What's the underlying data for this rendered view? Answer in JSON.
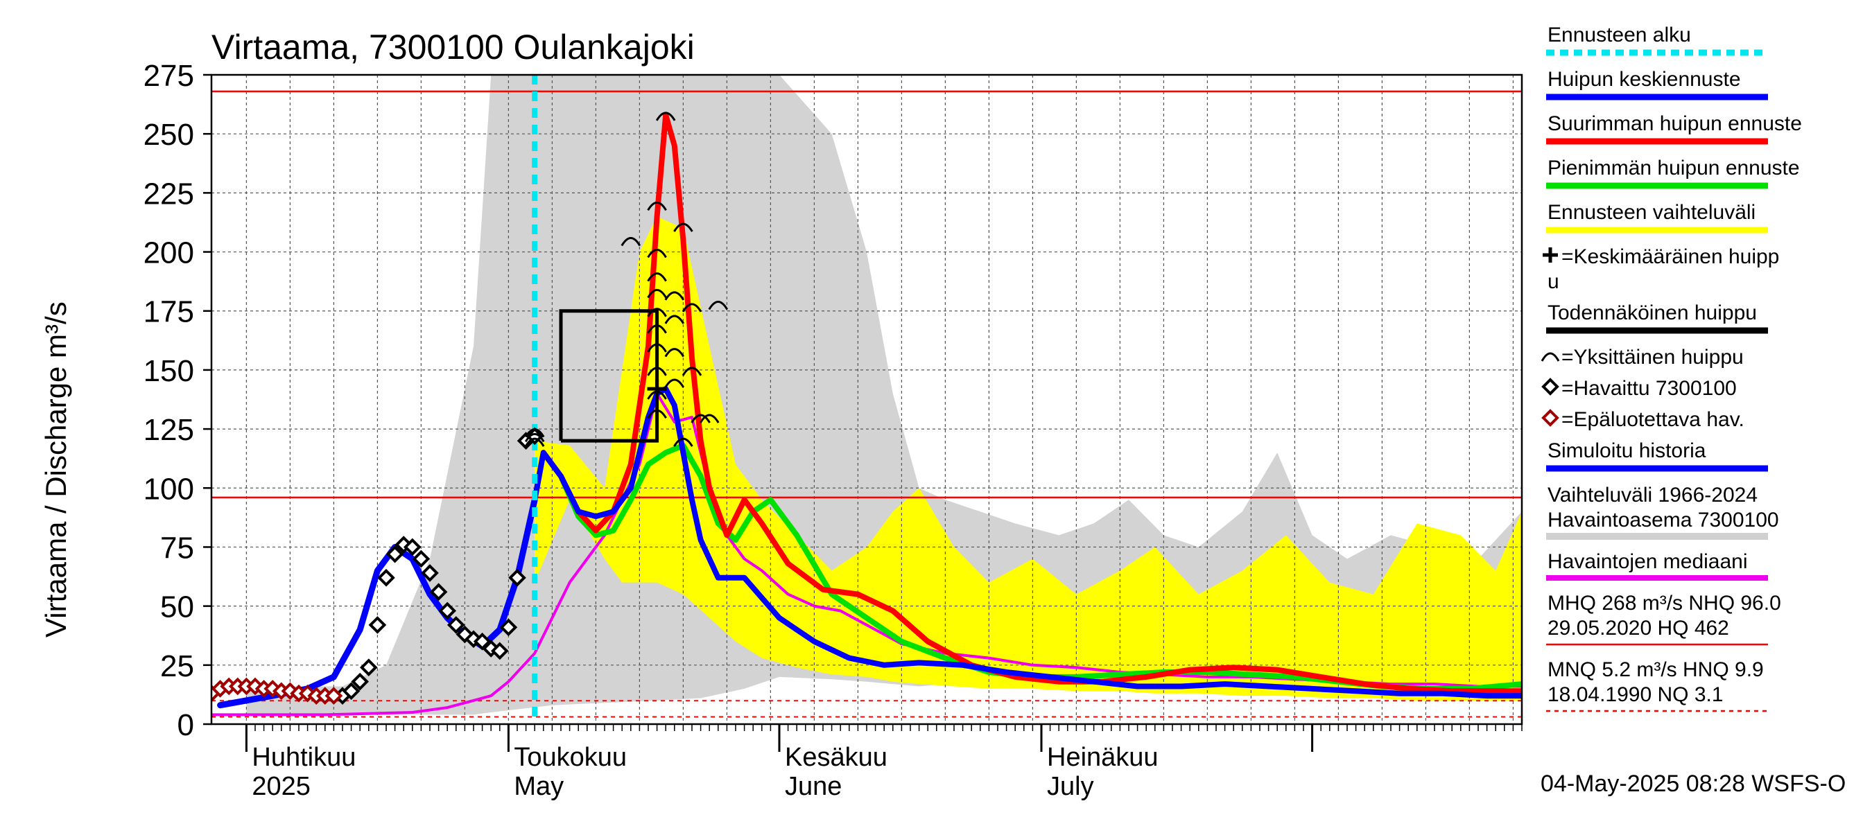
{
  "chart_data": {
    "type": "line",
    "title": "Virtaama, 7300100 Oulankajoki",
    "ylabel": "Virtaama / Discharge   m³/s",
    "yticks": [
      0,
      25,
      50,
      75,
      100,
      125,
      150,
      175,
      200,
      225,
      250,
      275
    ],
    "ylim": [
      0,
      275
    ],
    "xlim": [
      "2025-03-28",
      "2025-08-25"
    ],
    "month_labels": [
      {
        "fi": "Huhtikuu",
        "en": "2025",
        "date": "2025-04-01"
      },
      {
        "fi": "Toukokuu",
        "en": "May",
        "date": "2025-05-01"
      },
      {
        "fi": "Kesäkuu",
        "en": "June",
        "date": "2025-06-01"
      },
      {
        "fi": "Heinäkuu",
        "en": "July",
        "date": "2025-07-01"
      }
    ],
    "forecast_start": "2025-05-04",
    "reference_lines": {
      "MHQ": 268,
      "NHQ": 96.0,
      "HQ": 462,
      "MNQ": 5.2,
      "HNQ": 9.9,
      "NQ": 3.1
    },
    "legend": [
      {
        "label": "Ennusteen alku",
        "color": "#00e5ee",
        "style": "dash"
      },
      {
        "label": "Huipun keskiennuste",
        "color": "#0000ff",
        "style": "line"
      },
      {
        "label": "Suurimman huipun ennuste",
        "color": "#ff0000",
        "style": "line"
      },
      {
        "label": "Pienimmän huipun ennuste",
        "color": "#00e000",
        "style": "line"
      },
      {
        "label": "Ennusteen vaihteluväli",
        "color": "#ffff00",
        "style": "line"
      },
      {
        "label": "=Keskimääräinen huipp u",
        "color": "#000000",
        "style": "plus"
      },
      {
        "label": "Todennäköinen huippu",
        "color": "#000000",
        "style": "line"
      },
      {
        "label": "=Yksittäinen huippu",
        "color": "#000000",
        "style": "arc"
      },
      {
        "label": "=Havaittu 7300100",
        "color": "#000000",
        "style": "diamond"
      },
      {
        "label": "=Epäluotettava hav.",
        "color": "#a00000",
        "style": "diamond"
      },
      {
        "label": "Simuloitu historia",
        "color": "#0000ff",
        "style": "line"
      },
      {
        "label": "Vaihteluväli 1966-2024 Havaintoasema 7300100",
        "color": "#d0d0d0",
        "style": "line"
      },
      {
        "label": "Havaintojen mediaani",
        "color": "#ee00ee",
        "style": "line"
      },
      {
        "label": "MHQ  268 m³/s NHQ 96.0 29.05.2020 HQ  462",
        "color": "#ff0000",
        "style": "line"
      },
      {
        "label": "MNQ  5.2 m³/s HNQ  9.9 18.04.1990 NQ  3.1",
        "color": "#ff0000",
        "style": "dashline"
      }
    ],
    "series": [
      {
        "name": "Vaihteluväli 1966-2024",
        "kind": "band",
        "x": [
          "2025-04-01",
          "2025-04-12",
          "2025-04-17",
          "2025-04-22",
          "2025-04-27",
          "2025-04-29",
          "2025-05-06",
          "2025-05-12",
          "2025-05-18",
          "2025-05-23",
          "2025-05-28",
          "2025-06-01",
          "2025-06-07",
          "2025-06-11",
          "2025-06-14",
          "2025-06-17",
          "2025-06-20",
          "2025-06-24",
          "2025-06-28",
          "2025-07-03",
          "2025-07-07",
          "2025-07-11",
          "2025-07-15",
          "2025-07-19",
          "2025-07-24",
          "2025-07-28",
          "2025-08-01",
          "2025-08-05",
          "2025-08-10",
          "2025-08-15",
          "2025-08-20",
          "2025-08-25"
        ],
        "low": [
          4,
          4,
          4,
          4,
          4,
          5,
          8,
          9,
          10,
          11,
          15,
          20,
          19,
          18,
          17,
          16,
          17,
          17,
          16,
          16,
          15,
          15,
          14,
          14,
          13,
          13,
          12,
          12,
          11,
          11,
          11,
          10
        ],
        "high": [
          16,
          16,
          25,
          70,
          160,
          275,
          275,
          275,
          275,
          275,
          275,
          275,
          250,
          200,
          140,
          100,
          95,
          90,
          85,
          80,
          85,
          95,
          80,
          75,
          90,
          115,
          80,
          70,
          80,
          75,
          70,
          90
        ]
      },
      {
        "name": "Ennusteen vaihteluväli",
        "kind": "band",
        "x": [
          "2025-05-04",
          "2025-05-08",
          "2025-05-12",
          "2025-05-14",
          "2025-05-16",
          "2025-05-18",
          "2025-05-21",
          "2025-05-24",
          "2025-05-27",
          "2025-05-30",
          "2025-06-03",
          "2025-06-07",
          "2025-06-11",
          "2025-06-14",
          "2025-06-17",
          "2025-06-21",
          "2025-06-25",
          "2025-06-30",
          "2025-07-05",
          "2025-07-10",
          "2025-07-14",
          "2025-07-19",
          "2025-07-24",
          "2025-07-29",
          "2025-08-03",
          "2025-08-08",
          "2025-08-13",
          "2025-08-18",
          "2025-08-22",
          "2025-08-25"
        ],
        "low": [
          60,
          95,
          70,
          60,
          60,
          60,
          55,
          45,
          35,
          28,
          24,
          21,
          20,
          18,
          17,
          16,
          15,
          15,
          14,
          14,
          13,
          13,
          12,
          12,
          11,
          11,
          10,
          10,
          10,
          10
        ],
        "high": [
          120,
          118,
          100,
          150,
          200,
          215,
          210,
          160,
          110,
          95,
          80,
          65,
          75,
          90,
          100,
          75,
          60,
          70,
          55,
          65,
          75,
          55,
          65,
          80,
          60,
          55,
          85,
          80,
          65,
          90
        ]
      },
      {
        "name": "Simuloitu historia",
        "kind": "line",
        "color": "#0000ff",
        "x": [
          "2025-03-29",
          "2025-04-04",
          "2025-04-08",
          "2025-04-11",
          "2025-04-14",
          "2025-04-16",
          "2025-04-18",
          "2025-04-20",
          "2025-04-22",
          "2025-04-24",
          "2025-04-26",
          "2025-04-28",
          "2025-04-30",
          "2025-05-02",
          "2025-05-04"
        ],
        "y": [
          8,
          12,
          15,
          20,
          40,
          65,
          75,
          70,
          55,
          45,
          38,
          33,
          40,
          62,
          95
        ]
      },
      {
        "name": "Havaittu 7300100",
        "kind": "markers",
        "color": "#000000",
        "x": [
          "2025-04-12",
          "2025-04-13",
          "2025-04-14",
          "2025-04-15",
          "2025-04-16",
          "2025-04-17",
          "2025-04-18",
          "2025-04-19",
          "2025-04-20",
          "2025-04-21",
          "2025-04-22",
          "2025-04-23",
          "2025-04-24",
          "2025-04-25",
          "2025-04-26",
          "2025-04-27",
          "2025-04-28",
          "2025-04-29",
          "2025-04-30",
          "2025-05-01",
          "2025-05-02",
          "2025-05-03",
          "2025-05-04"
        ],
        "y": [
          12,
          14,
          18,
          24,
          42,
          62,
          72,
          76,
          75,
          70,
          64,
          56,
          48,
          42,
          38,
          36,
          35,
          32,
          31,
          41,
          62,
          120,
          122
        ]
      },
      {
        "name": "Epäluotettava hav.",
        "kind": "markers",
        "color": "#a00000",
        "x": [
          "2025-03-28",
          "2025-03-29",
          "2025-03-30",
          "2025-03-31",
          "2025-04-01",
          "2025-04-02",
          "2025-04-03",
          "2025-04-04",
          "2025-04-05",
          "2025-04-06",
          "2025-04-07",
          "2025-04-08",
          "2025-04-09",
          "2025-04-10",
          "2025-04-11"
        ],
        "y": [
          13,
          15,
          16,
          16,
          16,
          16,
          15,
          15,
          14,
          14,
          13,
          13,
          12,
          12,
          12
        ]
      },
      {
        "name": "Havaintojen mediaani",
        "kind": "line",
        "color": "#ee00ee",
        "x": [
          "2025-03-28",
          "2025-04-10",
          "2025-04-20",
          "2025-04-24",
          "2025-04-27",
          "2025-04-29",
          "2025-05-01",
          "2025-05-04",
          "2025-05-06",
          "2025-05-08",
          "2025-05-10",
          "2025-05-12",
          "2025-05-14",
          "2025-05-16",
          "2025-05-18",
          "2025-05-20",
          "2025-05-22",
          "2025-05-24",
          "2025-05-26",
          "2025-05-28",
          "2025-05-30",
          "2025-06-02",
          "2025-06-05",
          "2025-06-08",
          "2025-06-12",
          "2025-06-15",
          "2025-06-20",
          "2025-06-25",
          "2025-06-30",
          "2025-07-05",
          "2025-07-10",
          "2025-07-15",
          "2025-07-20",
          "2025-07-25",
          "2025-07-30",
          "2025-08-05",
          "2025-08-10",
          "2025-08-15",
          "2025-08-20",
          "2025-08-25"
        ],
        "y": [
          4,
          4,
          5,
          7,
          10,
          12,
          18,
          30,
          45,
          60,
          70,
          80,
          95,
          110,
          140,
          128,
          130,
          100,
          80,
          70,
          65,
          55,
          50,
          48,
          40,
          34,
          30,
          28,
          25,
          24,
          22,
          21,
          20,
          20,
          19,
          18,
          17,
          17,
          16,
          16
        ]
      },
      {
        "name": "Huipun keskiennuste",
        "kind": "line",
        "color": "#0000ff",
        "x": [
          "2025-05-04",
          "2025-05-05",
          "2025-05-07",
          "2025-05-09",
          "2025-05-11",
          "2025-05-13",
          "2025-05-15",
          "2025-05-17",
          "2025-05-18",
          "2025-05-19",
          "2025-05-20",
          "2025-05-21",
          "2025-05-22",
          "2025-05-23",
          "2025-05-25",
          "2025-05-28",
          "2025-06-01",
          "2025-06-05",
          "2025-06-09",
          "2025-06-13",
          "2025-06-17",
          "2025-06-22",
          "2025-06-27",
          "2025-07-02",
          "2025-07-07",
          "2025-07-12",
          "2025-07-17",
          "2025-07-22",
          "2025-07-27",
          "2025-08-01",
          "2025-08-06",
          "2025-08-11",
          "2025-08-16",
          "2025-08-21",
          "2025-08-25"
        ],
        "y": [
          95,
          115,
          105,
          90,
          88,
          90,
          100,
          130,
          140,
          142,
          135,
          115,
          95,
          78,
          62,
          62,
          45,
          35,
          28,
          25,
          26,
          25,
          22,
          20,
          18,
          16,
          16,
          17,
          16,
          15,
          14,
          13,
          13,
          12,
          12
        ]
      },
      {
        "name": "Suurimman huipun ennuste",
        "kind": "line",
        "color": "#ff0000",
        "x": [
          "2025-05-04",
          "2025-05-05",
          "2025-05-07",
          "2025-05-09",
          "2025-05-11",
          "2025-05-13",
          "2025-05-15",
          "2025-05-17",
          "2025-05-18",
          "2025-05-19",
          "2025-05-20",
          "2025-05-21",
          "2025-05-22",
          "2025-05-23",
          "2025-05-24",
          "2025-05-26",
          "2025-05-28",
          "2025-05-30",
          "2025-06-02",
          "2025-06-06",
          "2025-06-10",
          "2025-06-14",
          "2025-06-18",
          "2025-06-23",
          "2025-06-28",
          "2025-07-03",
          "2025-07-08",
          "2025-07-13",
          "2025-07-18",
          "2025-07-23",
          "2025-07-28",
          "2025-08-02",
          "2025-08-07",
          "2025-08-12",
          "2025-08-17",
          "2025-08-22",
          "2025-08-25"
        ],
        "y": [
          95,
          115,
          105,
          90,
          82,
          90,
          110,
          160,
          215,
          258,
          245,
          205,
          155,
          120,
          100,
          80,
          95,
          85,
          68,
          57,
          55,
          48,
          35,
          25,
          20,
          18,
          18,
          20,
          23,
          24,
          23,
          20,
          17,
          15,
          14,
          14,
          14
        ]
      },
      {
        "name": "Pienimmän huipun ennuste",
        "kind": "line",
        "color": "#00e000",
        "x": [
          "2025-05-04",
          "2025-05-05",
          "2025-05-07",
          "2025-05-09",
          "2025-05-11",
          "2025-05-13",
          "2025-05-15",
          "2025-05-17",
          "2025-05-19",
          "2025-05-21",
          "2025-05-23",
          "2025-05-25",
          "2025-05-27",
          "2025-05-29",
          "2025-05-31",
          "2025-06-03",
          "2025-06-07",
          "2025-06-11",
          "2025-06-15",
          "2025-06-20",
          "2025-06-25",
          "2025-06-30",
          "2025-07-05",
          "2025-07-10",
          "2025-07-15",
          "2025-07-20",
          "2025-07-25",
          "2025-07-30",
          "2025-08-04",
          "2025-08-09",
          "2025-08-14",
          "2025-08-19",
          "2025-08-25"
        ],
        "y": [
          95,
          115,
          105,
          88,
          80,
          82,
          95,
          110,
          115,
          118,
          105,
          85,
          78,
          90,
          95,
          80,
          55,
          45,
          35,
          28,
          22,
          20,
          20,
          21,
          22,
          22,
          21,
          20,
          18,
          16,
          15,
          15,
          17
        ]
      },
      {
        "name": "Todennäköinen huippu",
        "kind": "steps",
        "color": "#000000",
        "x": [
          "2025-05-07",
          "2025-05-07",
          "2025-05-18",
          "2025-05-18",
          "2025-05-07"
        ],
        "y": [
          120,
          175,
          175,
          120,
          120
        ]
      }
    ],
    "individual_peaks": [
      {
        "x": "2025-05-19",
        "y": 258
      },
      {
        "x": "2025-05-18",
        "y": 220
      },
      {
        "x": "2025-05-21",
        "y": 211
      },
      {
        "x": "2025-05-15",
        "y": 205
      },
      {
        "x": "2025-05-18",
        "y": 200
      },
      {
        "x": "2025-05-18",
        "y": 190
      },
      {
        "x": "2025-05-20",
        "y": 182
      },
      {
        "x": "2025-05-18",
        "y": 183
      },
      {
        "x": "2025-05-18",
        "y": 175
      },
      {
        "x": "2025-05-22",
        "y": 177
      },
      {
        "x": "2025-05-20",
        "y": 172
      },
      {
        "x": "2025-05-18",
        "y": 168
      },
      {
        "x": "2025-05-18",
        "y": 160
      },
      {
        "x": "2025-05-20",
        "y": 158
      },
      {
        "x": "2025-05-22",
        "y": 150
      },
      {
        "x": "2025-05-18",
        "y": 150
      },
      {
        "x": "2025-05-18",
        "y": 140
      },
      {
        "x": "2025-05-20",
        "y": 145
      },
      {
        "x": "2025-05-18",
        "y": 132
      },
      {
        "x": "2025-05-23",
        "y": 130
      },
      {
        "x": "2025-05-21",
        "y": 120
      },
      {
        "x": "2025-05-25",
        "y": 178
      },
      {
        "x": "2025-05-24",
        "y": 130
      },
      {
        "x": "2025-05-04",
        "y": 124
      },
      {
        "x": "2025-05-04",
        "y": 122
      },
      {
        "x": "2025-05-04",
        "y": 120
      }
    ],
    "mean_peak": {
      "x": "2025-05-18",
      "y": 142
    },
    "footer": "04-May-2025 08:28 WSFS-O"
  }
}
